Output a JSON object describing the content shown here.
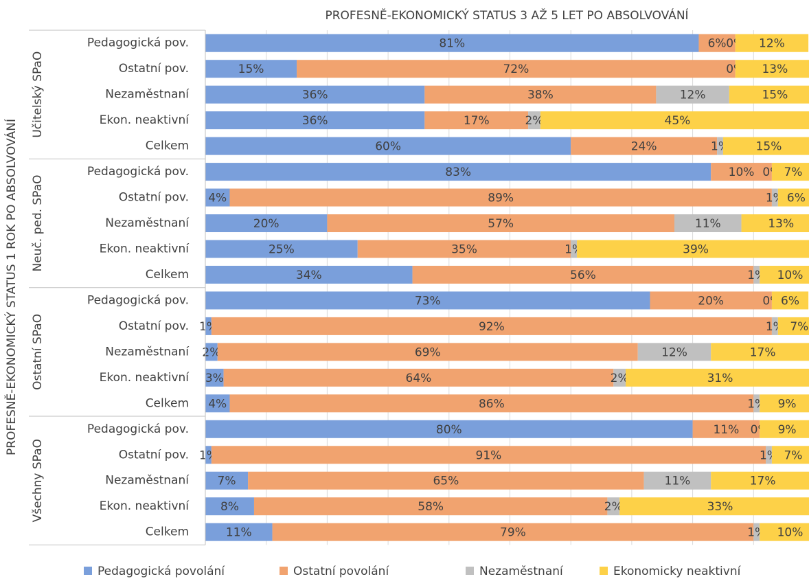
{
  "chart_data": {
    "type": "stacked-bar-horizontal",
    "title": "PROFESNĚ-EKONOMICKÝ STATUS 3 AŽ 5 LET PO ABSOLVOVÁNÍ",
    "y_label": "PROFESNĚ-EKONOMICKÝ STATUS  1 ROK PO ABSOLVOVÁNÍ",
    "groups": [
      {
        "name": "Učitelský SPaO",
        "categories": [
          "Pedagogická pov.",
          "Ostatní pov.",
          "Nezaměstnaní",
          "Ekon. neaktivní",
          "Celkem"
        ]
      },
      {
        "name": "Neuč. ped. SPaO",
        "categories": [
          "Pedagogická pov.",
          "Ostatní pov.",
          "Nezaměstnaní",
          "Ekon. neaktivní",
          "Celkem"
        ]
      },
      {
        "name": "Ostatní SPaO",
        "categories": [
          "Pedagogická pov.",
          "Ostatní pov.",
          "Nezaměstnaní",
          "Ekon. neaktivní",
          "Celkem"
        ]
      },
      {
        "name": "Všechny SPaO",
        "categories": [
          "Pedagogická pov.",
          "Ostatní pov.",
          "Nezaměstnaní",
          "Ekon. neaktivní",
          "Celkem"
        ]
      }
    ],
    "series": [
      {
        "name": "Pedagogická povolání",
        "color": "#7a9fdb",
        "values": [
          81,
          15,
          36,
          36,
          60,
          83,
          4,
          20,
          25,
          34,
          73,
          1,
          2,
          3,
          4,
          80,
          1,
          7,
          8,
          11
        ],
        "value_labels": [
          "81%",
          "15%",
          "36%",
          "36%",
          "60%",
          "83%",
          "4%",
          "20%",
          "25%",
          "34%",
          "73%",
          "1%",
          "2%",
          "3%",
          "4%",
          "80%",
          "1%",
          "7%",
          "8%",
          "11%"
        ]
      },
      {
        "name": "Ostatní povolání",
        "color": "#f1a36f",
        "values": [
          6,
          72,
          38,
          17,
          24,
          10,
          89,
          57,
          35,
          56,
          20,
          92,
          69,
          64,
          86,
          11,
          91,
          65,
          58,
          79
        ],
        "value_labels": [
          "6%",
          "72%",
          "38%",
          "17%",
          "24%",
          "10%",
          "89%",
          "57%",
          "35%",
          "56%",
          "20%",
          "92%",
          "69%",
          "64%",
          "86%",
          "11%",
          "91%",
          "65%",
          "58%",
          "79%"
        ]
      },
      {
        "name": "Nezaměstnaní",
        "color": "#c0c0c0",
        "values": [
          0,
          0,
          12,
          2,
          1,
          0,
          1,
          11,
          1,
          1,
          0,
          1,
          12,
          2,
          1,
          0,
          1,
          11,
          2,
          1
        ],
        "value_labels": [
          "0%",
          "0%",
          "12%",
          "2%",
          "1%",
          "0%",
          "1%",
          "11%",
          "1%",
          "1%",
          "0%",
          "1%",
          "12%",
          "2%",
          "1%",
          "0%",
          "1%",
          "11%",
          "2%",
          "1%"
        ]
      },
      {
        "name": "Ekonomicky neaktivní",
        "color": "#fdd148",
        "values": [
          12,
          13,
          15,
          45,
          15,
          7,
          6,
          13,
          39,
          10,
          6,
          7,
          17,
          31,
          9,
          9,
          7,
          17,
          33,
          10
        ],
        "value_labels": [
          "12%",
          "13%",
          "15%",
          "45%",
          "15%",
          "7%",
          "6%",
          "13%",
          "39%",
          "10%",
          "6%",
          "7%",
          "17%",
          "31%",
          "9%",
          "9%",
          "7%",
          "17%",
          "33%",
          "10%"
        ]
      }
    ],
    "xlim": [
      0,
      100
    ],
    "xticks": [
      0,
      10,
      20,
      30,
      40,
      50,
      60,
      70,
      80,
      90,
      100
    ],
    "grid": true,
    "legend": "bottom"
  }
}
